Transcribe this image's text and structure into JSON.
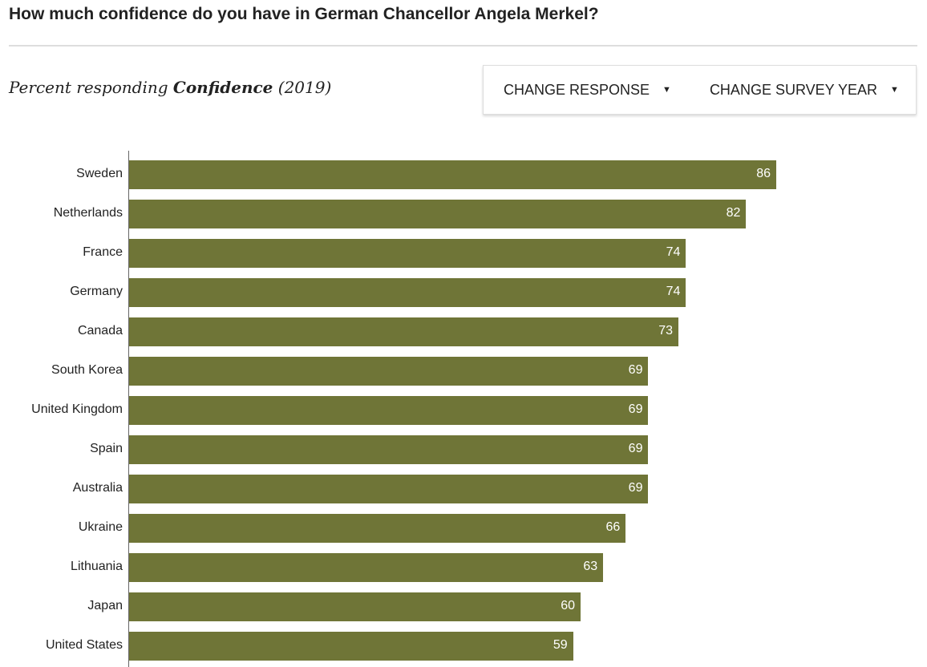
{
  "header": {
    "title": "How much confidence do you have in German Chancellor Angela Merkel?"
  },
  "subtitle": {
    "prefix": "Percent responding",
    "response": "Confidence",
    "year": "(2019)"
  },
  "controls": {
    "change_response": "CHANGE RESPONSE",
    "change_year": "CHANGE SURVEY YEAR"
  },
  "colors": {
    "bar": "#6f7537"
  },
  "chart_data": {
    "type": "bar",
    "orientation": "horizontal",
    "title": "How much confidence do you have in German Chancellor Angela Merkel?",
    "xlabel": "",
    "ylabel": "",
    "xlim": [
      0,
      100
    ],
    "categories": [
      "Sweden",
      "Netherlands",
      "France",
      "Germany",
      "Canada",
      "South Korea",
      "United Kingdom",
      "Spain",
      "Australia",
      "Ukraine",
      "Lithuania",
      "Japan",
      "United States"
    ],
    "values": [
      86,
      82,
      74,
      74,
      73,
      69,
      69,
      69,
      69,
      66,
      63,
      60,
      59
    ]
  }
}
